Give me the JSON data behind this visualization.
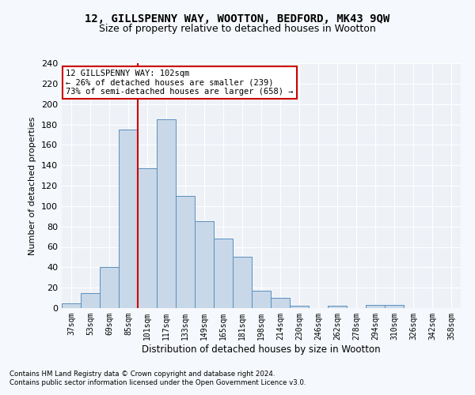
{
  "title1": "12, GILLSPENNY WAY, WOOTTON, BEDFORD, MK43 9QW",
  "title2": "Size of property relative to detached houses in Wootton",
  "xlabel": "Distribution of detached houses by size in Wootton",
  "ylabel": "Number of detached properties",
  "categories": [
    "37sqm",
    "53sqm",
    "69sqm",
    "85sqm",
    "101sqm",
    "117sqm",
    "133sqm",
    "149sqm",
    "165sqm",
    "181sqm",
    "198sqm",
    "214sqm",
    "230sqm",
    "246sqm",
    "262sqm",
    "278sqm",
    "294sqm",
    "310sqm",
    "326sqm",
    "342sqm",
    "358sqm"
  ],
  "values": [
    5,
    15,
    40,
    175,
    137,
    185,
    110,
    85,
    68,
    50,
    17,
    10,
    2,
    0,
    2,
    0,
    3,
    3,
    0,
    0,
    0
  ],
  "bar_color": "#c8d8e8",
  "bar_edge_color": "#5b8fbe",
  "vline_x": 3.5,
  "vline_color": "#cc0000",
  "annotation_text": "12 GILLSPENNY WAY: 102sqm\n← 26% of detached houses are smaller (239)\n73% of semi-detached houses are larger (658) →",
  "annotation_fontsize": 7.5,
  "annotation_box_color": "#cc0000",
  "footer1": "Contains HM Land Registry data © Crown copyright and database right 2024.",
  "footer2": "Contains public sector information licensed under the Open Government Licence v3.0.",
  "ylim": [
    0,
    240
  ],
  "yticks": [
    0,
    20,
    40,
    60,
    80,
    100,
    120,
    140,
    160,
    180,
    200,
    220,
    240
  ],
  "bg_color": "#eef2f7",
  "grid_color": "#ffffff",
  "fig_bg_color": "#f5f8fc",
  "title1_fontsize": 10,
  "title2_fontsize": 9
}
